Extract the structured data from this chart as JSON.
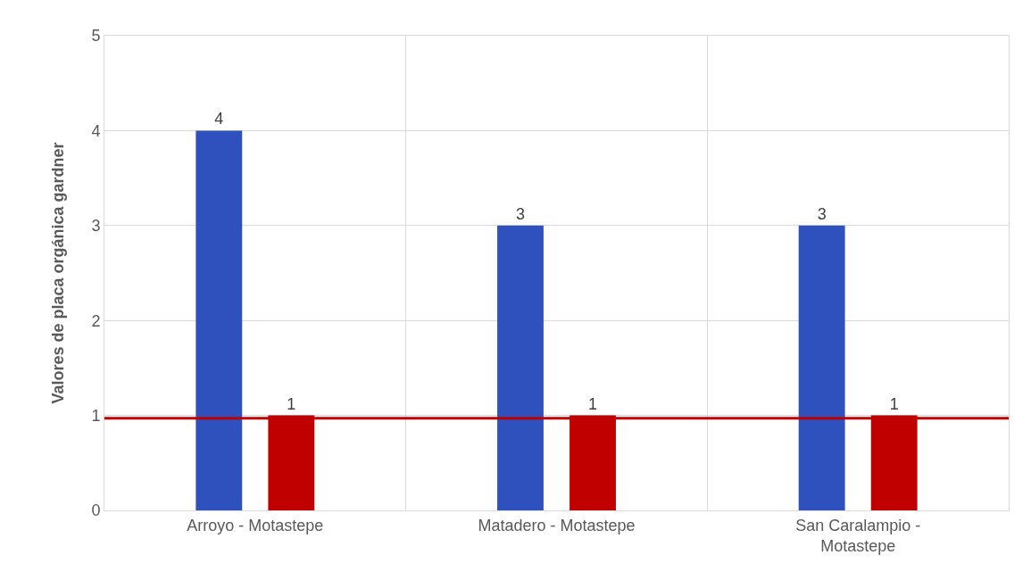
{
  "chart_data": {
    "type": "bar",
    "ylabel": "Valores de placa orgánica gardner",
    "categories": [
      "Arroyo - Motastepe",
      "Matadero - Motastepe",
      "San Caralampio - Motastepe"
    ],
    "series": [
      {
        "color": "#2e51be",
        "values": [
          4,
          3,
          3
        ]
      },
      {
        "color": "#c00000",
        "values": [
          1,
          1,
          1
        ]
      }
    ],
    "ylim": [
      0,
      5
    ],
    "yticks": [
      0,
      1,
      2,
      3,
      4,
      5
    ],
    "grid": true,
    "data_labels": true,
    "ref_lines": [
      {
        "axis": "y",
        "value": 0.97,
        "color": "#c00000"
      }
    ]
  }
}
